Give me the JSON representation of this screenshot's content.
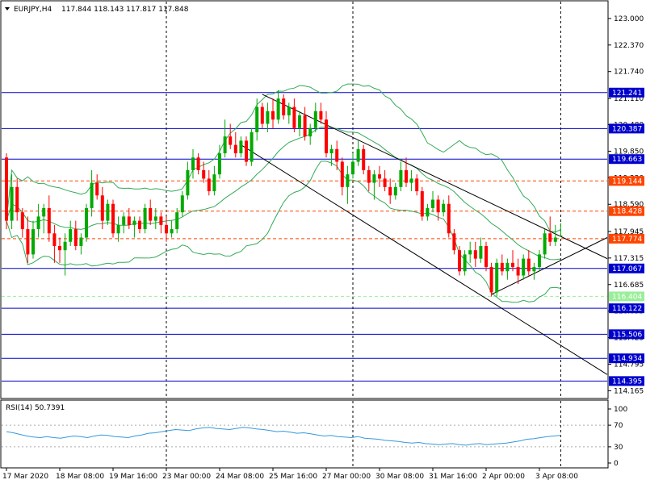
{
  "header": {
    "title": "EURJPY,H4",
    "ohlc": "117.844 118.143 117.817 117.848"
  },
  "rsi": {
    "label": "RSI(14) 50.7391",
    "ticks": [
      "100",
      "70",
      "30",
      "0"
    ],
    "levels": [
      100,
      70,
      30,
      0
    ],
    "values": [
      58,
      56,
      53,
      50,
      48,
      47,
      49,
      47,
      46,
      48,
      50,
      49,
      47,
      50,
      52,
      51,
      49,
      48,
      47,
      50,
      52,
      55,
      56,
      58,
      60,
      62,
      61,
      60,
      63,
      65,
      66,
      64,
      63,
      62,
      64,
      66,
      65,
      63,
      62,
      60,
      58,
      59,
      57,
      55,
      56,
      54,
      52,
      50,
      51,
      49,
      48,
      47,
      49,
      46,
      45,
      44,
      42,
      41,
      40,
      38,
      37,
      38,
      36,
      35,
      34,
      35,
      36,
      34,
      33,
      35,
      36,
      34,
      35,
      36,
      37,
      39,
      41,
      44,
      45,
      47,
      49,
      50,
      51
    ]
  },
  "price_labels": [
    {
      "value": 121.241,
      "text": "121.241",
      "style": "line",
      "color": "#0000cc",
      "textColor": "#ffffff"
    },
    {
      "value": 120.387,
      "text": "120.387",
      "style": "line",
      "color": "#0000cc",
      "textColor": "#ffffff"
    },
    {
      "value": 119.663,
      "text": "119.663",
      "style": "line",
      "color": "#0000cc",
      "textColor": "#ffffff"
    },
    {
      "value": 119.144,
      "text": "119.144",
      "style": "dash",
      "color": "#ff4400",
      "textColor": "#ffffff"
    },
    {
      "value": 118.428,
      "text": "118.428",
      "style": "dash",
      "color": "#ff4400",
      "textColor": "#ffffff"
    },
    {
      "value": 117.774,
      "text": "117.774",
      "style": "dash",
      "color": "#ff4400",
      "textColor": "#ffffff"
    },
    {
      "value": 117.067,
      "text": "117.067",
      "style": "line",
      "color": "#0000cc",
      "textColor": "#ffffff"
    },
    {
      "value": 116.404,
      "text": "116.404",
      "style": "dash",
      "color": "#99ee99",
      "textColor": "#ffffff"
    },
    {
      "value": 116.122,
      "text": "116.122",
      "style": "line",
      "color": "#0000cc",
      "textColor": "#ffffff"
    },
    {
      "value": 115.506,
      "text": "115.506",
      "style": "line",
      "color": "#0000cc",
      "textColor": "#ffffff"
    },
    {
      "value": 114.934,
      "text": "114.934",
      "style": "line",
      "color": "#0000cc",
      "textColor": "#ffffff"
    },
    {
      "value": 114.395,
      "text": "114.395",
      "style": "line",
      "color": "#0000cc",
      "textColor": "#ffffff"
    }
  ],
  "chart_data": {
    "type": "candlestick",
    "symbol": "EURJPY",
    "timeframe": "H4",
    "ylim": [
      114.0,
      123.4
    ],
    "y_ticks": [
      123.0,
      122.37,
      121.74,
      121.1,
      120.48,
      119.85,
      119.22,
      118.59,
      117.945,
      117.315,
      116.685,
      116.055,
      115.425,
      114.795,
      114.165
    ],
    "y_tick_labels": [
      "123.000",
      "122.370",
      "121.740",
      "121.110",
      "120.480",
      "119.850",
      "119.220",
      "118.590",
      "117.945",
      "117.315",
      "116.685",
      "116.055",
      "115.425",
      "114.795",
      "114.165"
    ],
    "x_tick_labels": [
      "17 Mar 2020",
      "18 Mar 08:00",
      "19 Mar 16:00",
      "23 Mar 00:00",
      "24 Mar 08:00",
      "25 Mar 16:00",
      "27 Mar 00:00",
      "30 Mar 08:00",
      "31 Mar 16:00",
      "2 Apr 00:00",
      "3 Apr 08:00"
    ],
    "x_tick_index": [
      0,
      10,
      20,
      30,
      40,
      50,
      60,
      70,
      80,
      90,
      100
    ],
    "session_separators": [
      30,
      65,
      104
    ],
    "candles": [
      {
        "o": 119.7,
        "h": 119.8,
        "l": 118.0,
        "c": 118.2
      },
      {
        "o": 118.2,
        "h": 119.3,
        "l": 118.0,
        "c": 119.0
      },
      {
        "o": 119.0,
        "h": 119.2,
        "l": 118.2,
        "c": 118.4
      },
      {
        "o": 118.4,
        "h": 118.5,
        "l": 117.8,
        "c": 118.0
      },
      {
        "o": 118.0,
        "h": 118.3,
        "l": 117.2,
        "c": 117.4
      },
      {
        "o": 117.4,
        "h": 118.2,
        "l": 117.3,
        "c": 118.0
      },
      {
        "o": 118.0,
        "h": 118.6,
        "l": 117.8,
        "c": 118.3
      },
      {
        "o": 118.3,
        "h": 118.6,
        "l": 117.9,
        "c": 118.5
      },
      {
        "o": 118.5,
        "h": 118.8,
        "l": 117.7,
        "c": 117.9
      },
      {
        "o": 117.9,
        "h": 118.1,
        "l": 117.2,
        "c": 117.6
      },
      {
        "o": 117.6,
        "h": 117.8,
        "l": 117.2,
        "c": 117.5
      },
      {
        "o": 117.5,
        "h": 117.9,
        "l": 116.9,
        "c": 117.7
      },
      {
        "o": 117.7,
        "h": 118.2,
        "l": 117.6,
        "c": 118.0
      },
      {
        "o": 118.0,
        "h": 118.2,
        "l": 117.5,
        "c": 117.6
      },
      {
        "o": 117.6,
        "h": 117.9,
        "l": 117.4,
        "c": 117.8
      },
      {
        "o": 117.8,
        "h": 118.6,
        "l": 117.7,
        "c": 118.5
      },
      {
        "o": 118.5,
        "h": 119.4,
        "l": 118.3,
        "c": 119.1
      },
      {
        "o": 119.1,
        "h": 119.3,
        "l": 118.7,
        "c": 118.8
      },
      {
        "o": 118.8,
        "h": 119.0,
        "l": 118.0,
        "c": 118.2
      },
      {
        "o": 118.2,
        "h": 118.7,
        "l": 118.1,
        "c": 118.6
      },
      {
        "o": 118.6,
        "h": 118.7,
        "l": 117.8,
        "c": 117.9
      },
      {
        "o": 117.9,
        "h": 118.3,
        "l": 117.7,
        "c": 118.1
      },
      {
        "o": 118.1,
        "h": 118.4,
        "l": 117.9,
        "c": 118.3
      },
      {
        "o": 118.3,
        "h": 118.5,
        "l": 118.0,
        "c": 118.1
      },
      {
        "o": 118.1,
        "h": 118.3,
        "l": 117.8,
        "c": 118.2
      },
      {
        "o": 118.2,
        "h": 118.3,
        "l": 117.9,
        "c": 118.0
      },
      {
        "o": 118.0,
        "h": 118.6,
        "l": 117.9,
        "c": 118.5
      },
      {
        "o": 118.5,
        "h": 118.7,
        "l": 118.1,
        "c": 118.2
      },
      {
        "o": 118.2,
        "h": 118.5,
        "l": 118.0,
        "c": 118.3
      },
      {
        "o": 118.3,
        "h": 118.4,
        "l": 117.9,
        "c": 118.1
      },
      {
        "o": 118.1,
        "h": 118.3,
        "l": 117.7,
        "c": 117.9
      },
      {
        "o": 117.9,
        "h": 118.2,
        "l": 117.8,
        "c": 118.0
      },
      {
        "o": 118.0,
        "h": 118.5,
        "l": 117.9,
        "c": 118.4
      },
      {
        "o": 118.4,
        "h": 118.9,
        "l": 118.3,
        "c": 118.8
      },
      {
        "o": 118.8,
        "h": 119.6,
        "l": 118.7,
        "c": 119.4
      },
      {
        "o": 119.4,
        "h": 119.9,
        "l": 119.2,
        "c": 119.7
      },
      {
        "o": 119.7,
        "h": 119.8,
        "l": 119.3,
        "c": 119.4
      },
      {
        "o": 119.4,
        "h": 119.6,
        "l": 119.1,
        "c": 119.2
      },
      {
        "o": 119.2,
        "h": 119.4,
        "l": 118.8,
        "c": 118.9
      },
      {
        "o": 118.9,
        "h": 119.5,
        "l": 118.8,
        "c": 119.3
      },
      {
        "o": 119.3,
        "h": 120.0,
        "l": 119.2,
        "c": 119.8
      },
      {
        "o": 119.8,
        "h": 120.6,
        "l": 119.7,
        "c": 120.2
      },
      {
        "o": 120.2,
        "h": 120.5,
        "l": 119.9,
        "c": 120.0
      },
      {
        "o": 120.0,
        "h": 120.3,
        "l": 119.7,
        "c": 119.8
      },
      {
        "o": 119.8,
        "h": 120.2,
        "l": 119.7,
        "c": 120.1
      },
      {
        "o": 120.1,
        "h": 120.2,
        "l": 119.5,
        "c": 119.6
      },
      {
        "o": 119.6,
        "h": 120.4,
        "l": 119.5,
        "c": 120.3
      },
      {
        "o": 120.3,
        "h": 121.1,
        "l": 120.1,
        "c": 120.9
      },
      {
        "o": 120.9,
        "h": 121.0,
        "l": 120.4,
        "c": 120.5
      },
      {
        "o": 120.5,
        "h": 121.0,
        "l": 120.3,
        "c": 120.8
      },
      {
        "o": 120.8,
        "h": 121.1,
        "l": 120.4,
        "c": 120.6
      },
      {
        "o": 120.6,
        "h": 121.3,
        "l": 120.5,
        "c": 121.1
      },
      {
        "o": 121.1,
        "h": 121.2,
        "l": 120.6,
        "c": 120.7
      },
      {
        "o": 120.7,
        "h": 121.0,
        "l": 120.5,
        "c": 120.9
      },
      {
        "o": 120.9,
        "h": 121.1,
        "l": 120.3,
        "c": 120.4
      },
      {
        "o": 120.4,
        "h": 120.8,
        "l": 120.2,
        "c": 120.7
      },
      {
        "o": 120.7,
        "h": 120.9,
        "l": 120.1,
        "c": 120.2
      },
      {
        "o": 120.2,
        "h": 120.5,
        "l": 120.0,
        "c": 120.4
      },
      {
        "o": 120.4,
        "h": 121.0,
        "l": 120.3,
        "c": 120.8
      },
      {
        "o": 120.8,
        "h": 121.0,
        "l": 120.5,
        "c": 120.6
      },
      {
        "o": 120.6,
        "h": 120.8,
        "l": 119.7,
        "c": 119.8
      },
      {
        "o": 119.8,
        "h": 120.0,
        "l": 119.5,
        "c": 119.9
      },
      {
        "o": 119.9,
        "h": 120.1,
        "l": 119.4,
        "c": 119.6
      },
      {
        "o": 119.6,
        "h": 119.7,
        "l": 118.8,
        "c": 119.0
      },
      {
        "o": 119.0,
        "h": 119.5,
        "l": 118.6,
        "c": 119.3
      },
      {
        "o": 119.3,
        "h": 119.8,
        "l": 119.2,
        "c": 119.6
      },
      {
        "o": 119.6,
        "h": 120.1,
        "l": 119.5,
        "c": 119.9
      },
      {
        "o": 119.9,
        "h": 120.0,
        "l": 119.3,
        "c": 119.4
      },
      {
        "o": 119.4,
        "h": 119.5,
        "l": 118.9,
        "c": 119.1
      },
      {
        "o": 119.1,
        "h": 119.4,
        "l": 118.7,
        "c": 119.3
      },
      {
        "o": 119.3,
        "h": 119.5,
        "l": 119.0,
        "c": 119.2
      },
      {
        "o": 119.2,
        "h": 119.4,
        "l": 118.9,
        "c": 119.0
      },
      {
        "o": 119.0,
        "h": 119.2,
        "l": 118.6,
        "c": 118.8
      },
      {
        "o": 118.8,
        "h": 119.1,
        "l": 118.7,
        "c": 119.0
      },
      {
        "o": 119.0,
        "h": 119.6,
        "l": 118.9,
        "c": 119.4
      },
      {
        "o": 119.4,
        "h": 119.7,
        "l": 119.0,
        "c": 119.1
      },
      {
        "o": 119.1,
        "h": 119.4,
        "l": 118.9,
        "c": 119.2
      },
      {
        "o": 119.2,
        "h": 119.3,
        "l": 118.8,
        "c": 118.9
      },
      {
        "o": 118.9,
        "h": 119.0,
        "l": 118.2,
        "c": 118.3
      },
      {
        "o": 118.3,
        "h": 118.6,
        "l": 118.2,
        "c": 118.5
      },
      {
        "o": 118.5,
        "h": 118.9,
        "l": 118.4,
        "c": 118.7
      },
      {
        "o": 118.7,
        "h": 118.8,
        "l": 118.2,
        "c": 118.4
      },
      {
        "o": 118.4,
        "h": 118.7,
        "l": 118.3,
        "c": 118.6
      },
      {
        "o": 118.6,
        "h": 118.8,
        "l": 117.8,
        "c": 117.9
      },
      {
        "o": 117.9,
        "h": 118.0,
        "l": 117.4,
        "c": 117.5
      },
      {
        "o": 117.5,
        "h": 117.6,
        "l": 116.9,
        "c": 117.0
      },
      {
        "o": 117.0,
        "h": 117.5,
        "l": 116.9,
        "c": 117.4
      },
      {
        "o": 117.4,
        "h": 117.7,
        "l": 117.2,
        "c": 117.5
      },
      {
        "o": 117.5,
        "h": 117.7,
        "l": 117.1,
        "c": 117.3
      },
      {
        "o": 117.3,
        "h": 117.8,
        "l": 117.2,
        "c": 117.6
      },
      {
        "o": 117.6,
        "h": 117.7,
        "l": 117.0,
        "c": 117.1
      },
      {
        "o": 117.1,
        "h": 117.2,
        "l": 116.4,
        "c": 116.5
      },
      {
        "o": 116.5,
        "h": 117.3,
        "l": 116.4,
        "c": 117.2
      },
      {
        "o": 117.2,
        "h": 117.4,
        "l": 116.9,
        "c": 117.0
      },
      {
        "o": 117.0,
        "h": 117.3,
        "l": 116.8,
        "c": 117.2
      },
      {
        "o": 117.2,
        "h": 117.5,
        "l": 117.0,
        "c": 117.1
      },
      {
        "o": 117.1,
        "h": 117.3,
        "l": 116.7,
        "c": 116.9
      },
      {
        "o": 116.9,
        "h": 117.4,
        "l": 116.8,
        "c": 117.3
      },
      {
        "o": 117.3,
        "h": 117.5,
        "l": 116.9,
        "c": 117.0
      },
      {
        "o": 117.0,
        "h": 117.2,
        "l": 116.8,
        "c": 117.1
      },
      {
        "o": 117.1,
        "h": 117.5,
        "l": 117.0,
        "c": 117.4
      },
      {
        "o": 117.4,
        "h": 118.0,
        "l": 117.3,
        "c": 117.9
      },
      {
        "o": 117.9,
        "h": 118.3,
        "l": 117.6,
        "c": 117.7
      },
      {
        "o": 117.7,
        "h": 118.1,
        "l": 117.6,
        "c": 117.8
      },
      {
        "o": 117.844,
        "h": 118.143,
        "l": 117.817,
        "c": 117.848
      }
    ]
  },
  "colors": {
    "bull": "#00aa00",
    "bear": "#ff0000",
    "bands": "#33aa55",
    "rsi_line": "#3399dd",
    "grid_sep": "#000000",
    "trend": "#000000"
  }
}
